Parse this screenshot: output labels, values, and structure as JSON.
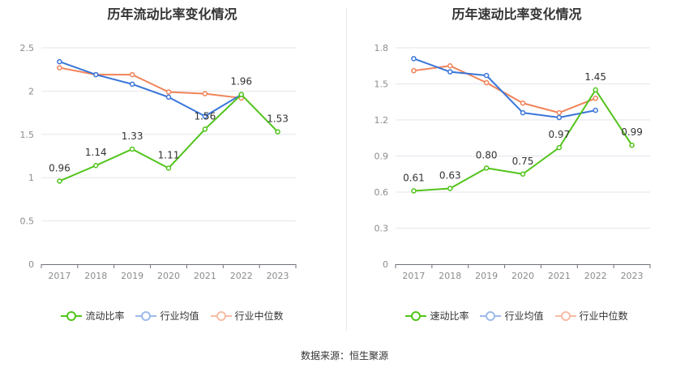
{
  "chart_data": [
    {
      "type": "line",
      "title": "历年流动比率变化情况",
      "categories": [
        "2017",
        "2018",
        "2019",
        "2020",
        "2021",
        "2022",
        "2023"
      ],
      "ylim": [
        0,
        2.5
      ],
      "yticks": [
        "0",
        "0.5",
        "1",
        "1.5",
        "2",
        "2.5"
      ],
      "ytick_values": [
        0,
        0.5,
        1,
        1.5,
        2,
        2.5
      ],
      "grid": true,
      "legend_position": "bottom-center",
      "series": [
        {
          "name": "流动比率",
          "color": "#52c41a",
          "labeled": true,
          "values": [
            0.96,
            1.14,
            1.33,
            1.11,
            1.56,
            1.96,
            1.53
          ],
          "labels": [
            "0.96",
            "1.14",
            "1.33",
            "1.11",
            "1.56",
            "1.96",
            "1.53"
          ]
        },
        {
          "name": "行业均值",
          "color": "#3a76d9",
          "labeled": false,
          "values": [
            2.34,
            2.19,
            2.08,
            1.93,
            1.71,
            1.96,
            null
          ]
        },
        {
          "name": "行业中位数",
          "color": "#f08358",
          "labeled": false,
          "values": [
            2.27,
            2.19,
            2.19,
            1.99,
            1.97,
            1.92,
            null
          ]
        }
      ]
    },
    {
      "type": "line",
      "title": "历年速动比率变化情况",
      "categories": [
        "2017",
        "2018",
        "2019",
        "2020",
        "2021",
        "2022",
        "2023"
      ],
      "ylim": [
        0,
        1.8
      ],
      "yticks": [
        "0",
        "0.3",
        "0.6",
        "0.9",
        "1.2",
        "1.5",
        "1.8"
      ],
      "ytick_values": [
        0,
        0.3,
        0.6,
        0.9,
        1.2,
        1.5,
        1.8
      ],
      "grid": true,
      "legend_position": "bottom-center",
      "series": [
        {
          "name": "速动比率",
          "color": "#52c41a",
          "labeled": true,
          "values": [
            0.61,
            0.63,
            0.8,
            0.75,
            0.97,
            1.45,
            0.99
          ],
          "labels": [
            "0.61",
            "0.63",
            "0.80",
            "0.75",
            "0.97",
            "1.45",
            "0.99"
          ]
        },
        {
          "name": "行业均值",
          "color": "#3a76d9",
          "labeled": false,
          "values": [
            1.71,
            1.6,
            1.57,
            1.26,
            1.22,
            1.28,
            null
          ]
        },
        {
          "name": "行业中位数",
          "color": "#f08358",
          "labeled": false,
          "values": [
            1.61,
            1.65,
            1.51,
            1.34,
            1.26,
            1.38,
            null
          ]
        }
      ]
    }
  ],
  "source_text": "数据来源：恒生聚源"
}
